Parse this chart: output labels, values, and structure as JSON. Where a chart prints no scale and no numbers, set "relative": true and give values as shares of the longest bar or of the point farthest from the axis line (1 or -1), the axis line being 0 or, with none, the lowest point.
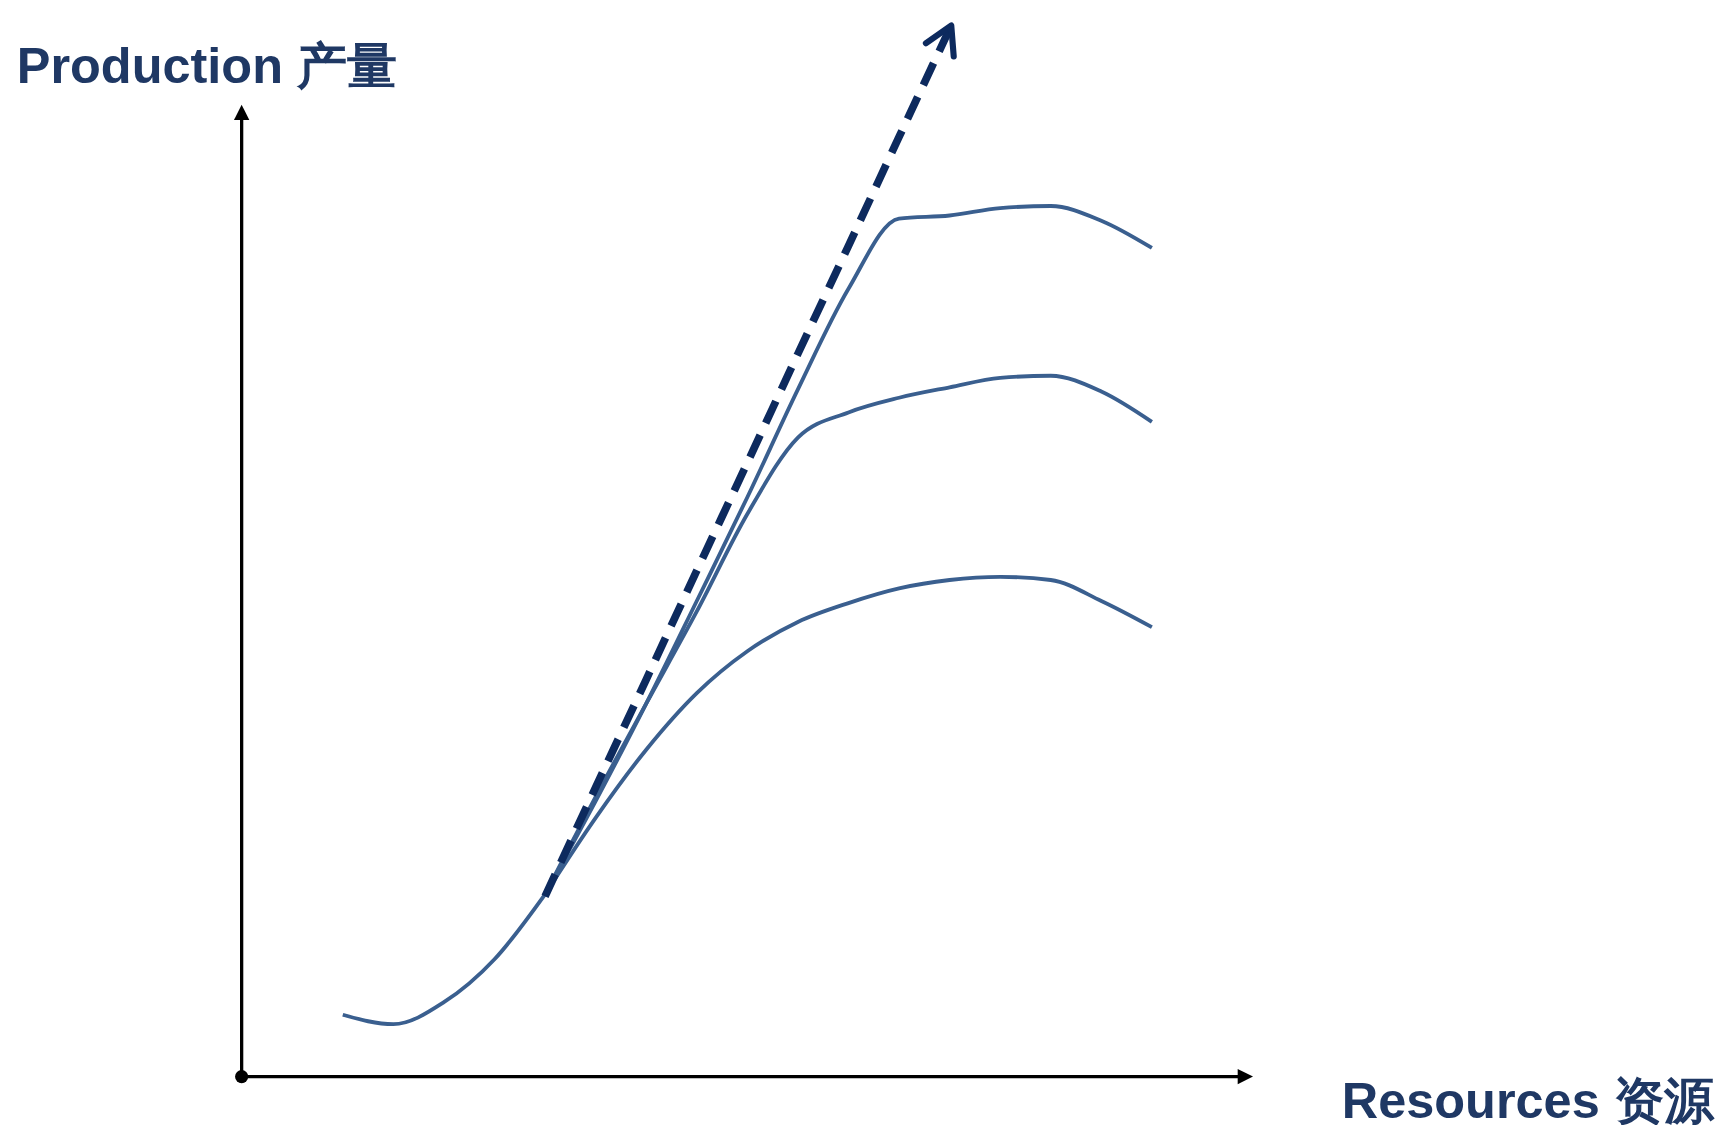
{
  "chart_data": {
    "type": "line",
    "relative": true,
    "xlabel": "Resources 资源",
    "ylabel": "Production 产量",
    "categories": [
      null,
      null,
      null,
      null,
      null,
      null,
      null,
      null,
      null,
      null,
      null,
      null,
      null,
      null,
      null,
      null,
      null,
      null,
      null,
      null,
      null
    ],
    "series": [
      {
        "color": "#3a5f8f",
        "values": [
          null,
          null,
          0.059,
          0.05,
          0.071,
          0.112,
          0.174,
          null,
          null,
          null,
          null,
          null,
          null,
          null,
          null,
          null,
          null,
          null,
          null,
          null,
          null
        ]
      },
      {
        "color": "#3a5f8f",
        "values": [
          null,
          null,
          null,
          null,
          null,
          null,
          0.174,
          0.247,
          0.312,
          0.366,
          0.406,
          0.434,
          0.452,
          0.466,
          0.474,
          0.477,
          0.474,
          0.454,
          0.429,
          null,
          null
        ]
      },
      {
        "color": "#3a5f8f",
        "values": [
          null,
          null,
          null,
          null,
          null,
          null,
          0.174,
          0.267,
          0.356,
          0.444,
          0.537,
          0.61,
          0.634,
          0.648,
          0.658,
          0.667,
          0.669,
          0.654,
          0.625,
          null,
          null
        ]
      },
      {
        "color": "#3a5f8f",
        "values": [
          null,
          null,
          null,
          null,
          null,
          null,
          0.174,
          0.263,
          0.356,
          0.454,
          0.553,
          0.656,
          0.752,
          0.819,
          0.822,
          0.829,
          0.831,
          0.817,
          0.791,
          null,
          null
        ]
      },
      {
        "color": "#0d2a5e",
        "line_style": "dashed",
        "values": [
          null,
          null,
          null,
          null,
          null,
          null,
          0.172,
          0.276,
          0.379,
          0.483,
          0.586,
          0.69,
          0.793,
          0.897,
          1,
          null,
          null,
          null,
          null,
          null,
          null
        ]
      }
    ]
  }
}
